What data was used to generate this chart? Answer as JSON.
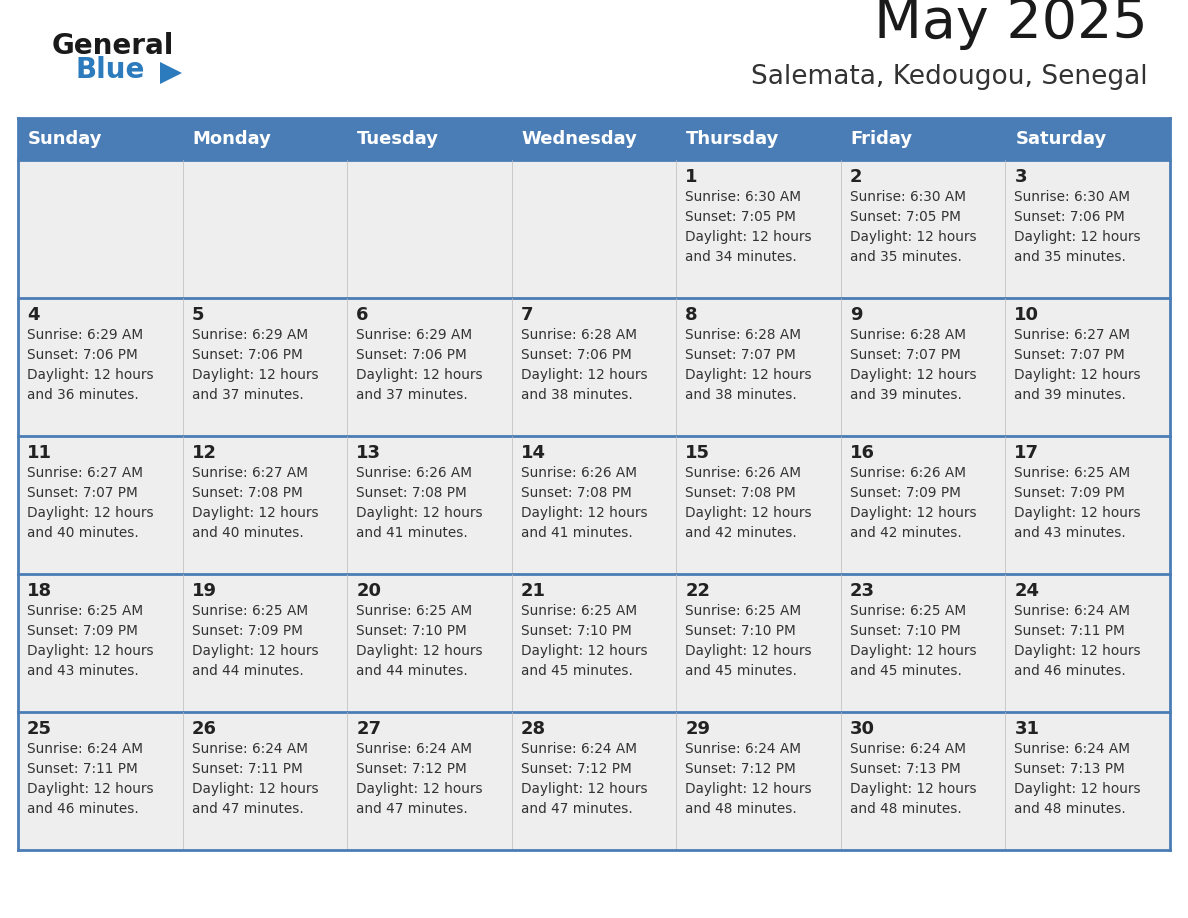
{
  "title": "May 2025",
  "subtitle": "Salemata, Kedougou, Senegal",
  "days_of_week": [
    "Sunday",
    "Monday",
    "Tuesday",
    "Wednesday",
    "Thursday",
    "Friday",
    "Saturday"
  ],
  "header_bg": "#4A7DB5",
  "header_text": "#FFFFFF",
  "row_bg_light": "#EEEEEE",
  "row_bg_white": "#FFFFFF",
  "cell_border": "#4A7DB5",
  "day_num_color": "#222222",
  "text_color": "#333333",
  "logo_general_color": "#1a1a1a",
  "logo_blue_color": "#2B7BBD",
  "weeks": [
    {
      "days": [
        {
          "date": "",
          "sunrise": "",
          "sunset": "",
          "daylight": ""
        },
        {
          "date": "",
          "sunrise": "",
          "sunset": "",
          "daylight": ""
        },
        {
          "date": "",
          "sunrise": "",
          "sunset": "",
          "daylight": ""
        },
        {
          "date": "",
          "sunrise": "",
          "sunset": "",
          "daylight": ""
        },
        {
          "date": "1",
          "sunrise": "6:30 AM",
          "sunset": "7:05 PM",
          "daylight": "12 hours\nand 34 minutes."
        },
        {
          "date": "2",
          "sunrise": "6:30 AM",
          "sunset": "7:05 PM",
          "daylight": "12 hours\nand 35 minutes."
        },
        {
          "date": "3",
          "sunrise": "6:30 AM",
          "sunset": "7:06 PM",
          "daylight": "12 hours\nand 35 minutes."
        }
      ]
    },
    {
      "days": [
        {
          "date": "4",
          "sunrise": "6:29 AM",
          "sunset": "7:06 PM",
          "daylight": "12 hours\nand 36 minutes."
        },
        {
          "date": "5",
          "sunrise": "6:29 AM",
          "sunset": "7:06 PM",
          "daylight": "12 hours\nand 37 minutes."
        },
        {
          "date": "6",
          "sunrise": "6:29 AM",
          "sunset": "7:06 PM",
          "daylight": "12 hours\nand 37 minutes."
        },
        {
          "date": "7",
          "sunrise": "6:28 AM",
          "sunset": "7:06 PM",
          "daylight": "12 hours\nand 38 minutes."
        },
        {
          "date": "8",
          "sunrise": "6:28 AM",
          "sunset": "7:07 PM",
          "daylight": "12 hours\nand 38 minutes."
        },
        {
          "date": "9",
          "sunrise": "6:28 AM",
          "sunset": "7:07 PM",
          "daylight": "12 hours\nand 39 minutes."
        },
        {
          "date": "10",
          "sunrise": "6:27 AM",
          "sunset": "7:07 PM",
          "daylight": "12 hours\nand 39 minutes."
        }
      ]
    },
    {
      "days": [
        {
          "date": "11",
          "sunrise": "6:27 AM",
          "sunset": "7:07 PM",
          "daylight": "12 hours\nand 40 minutes."
        },
        {
          "date": "12",
          "sunrise": "6:27 AM",
          "sunset": "7:08 PM",
          "daylight": "12 hours\nand 40 minutes."
        },
        {
          "date": "13",
          "sunrise": "6:26 AM",
          "sunset": "7:08 PM",
          "daylight": "12 hours\nand 41 minutes."
        },
        {
          "date": "14",
          "sunrise": "6:26 AM",
          "sunset": "7:08 PM",
          "daylight": "12 hours\nand 41 minutes."
        },
        {
          "date": "15",
          "sunrise": "6:26 AM",
          "sunset": "7:08 PM",
          "daylight": "12 hours\nand 42 minutes."
        },
        {
          "date": "16",
          "sunrise": "6:26 AM",
          "sunset": "7:09 PM",
          "daylight": "12 hours\nand 42 minutes."
        },
        {
          "date": "17",
          "sunrise": "6:25 AM",
          "sunset": "7:09 PM",
          "daylight": "12 hours\nand 43 minutes."
        }
      ]
    },
    {
      "days": [
        {
          "date": "18",
          "sunrise": "6:25 AM",
          "sunset": "7:09 PM",
          "daylight": "12 hours\nand 43 minutes."
        },
        {
          "date": "19",
          "sunrise": "6:25 AM",
          "sunset": "7:09 PM",
          "daylight": "12 hours\nand 44 minutes."
        },
        {
          "date": "20",
          "sunrise": "6:25 AM",
          "sunset": "7:10 PM",
          "daylight": "12 hours\nand 44 minutes."
        },
        {
          "date": "21",
          "sunrise": "6:25 AM",
          "sunset": "7:10 PM",
          "daylight": "12 hours\nand 45 minutes."
        },
        {
          "date": "22",
          "sunrise": "6:25 AM",
          "sunset": "7:10 PM",
          "daylight": "12 hours\nand 45 minutes."
        },
        {
          "date": "23",
          "sunrise": "6:25 AM",
          "sunset": "7:10 PM",
          "daylight": "12 hours\nand 45 minutes."
        },
        {
          "date": "24",
          "sunrise": "6:24 AM",
          "sunset": "7:11 PM",
          "daylight": "12 hours\nand 46 minutes."
        }
      ]
    },
    {
      "days": [
        {
          "date": "25",
          "sunrise": "6:24 AM",
          "sunset": "7:11 PM",
          "daylight": "12 hours\nand 46 minutes."
        },
        {
          "date": "26",
          "sunrise": "6:24 AM",
          "sunset": "7:11 PM",
          "daylight": "12 hours\nand 47 minutes."
        },
        {
          "date": "27",
          "sunrise": "6:24 AM",
          "sunset": "7:12 PM",
          "daylight": "12 hours\nand 47 minutes."
        },
        {
          "date": "28",
          "sunrise": "6:24 AM",
          "sunset": "7:12 PM",
          "daylight": "12 hours\nand 47 minutes."
        },
        {
          "date": "29",
          "sunrise": "6:24 AM",
          "sunset": "7:12 PM",
          "daylight": "12 hours\nand 48 minutes."
        },
        {
          "date": "30",
          "sunrise": "6:24 AM",
          "sunset": "7:13 PM",
          "daylight": "12 hours\nand 48 minutes."
        },
        {
          "date": "31",
          "sunrise": "6:24 AM",
          "sunset": "7:13 PM",
          "daylight": "12 hours\nand 48 minutes."
        }
      ]
    }
  ]
}
